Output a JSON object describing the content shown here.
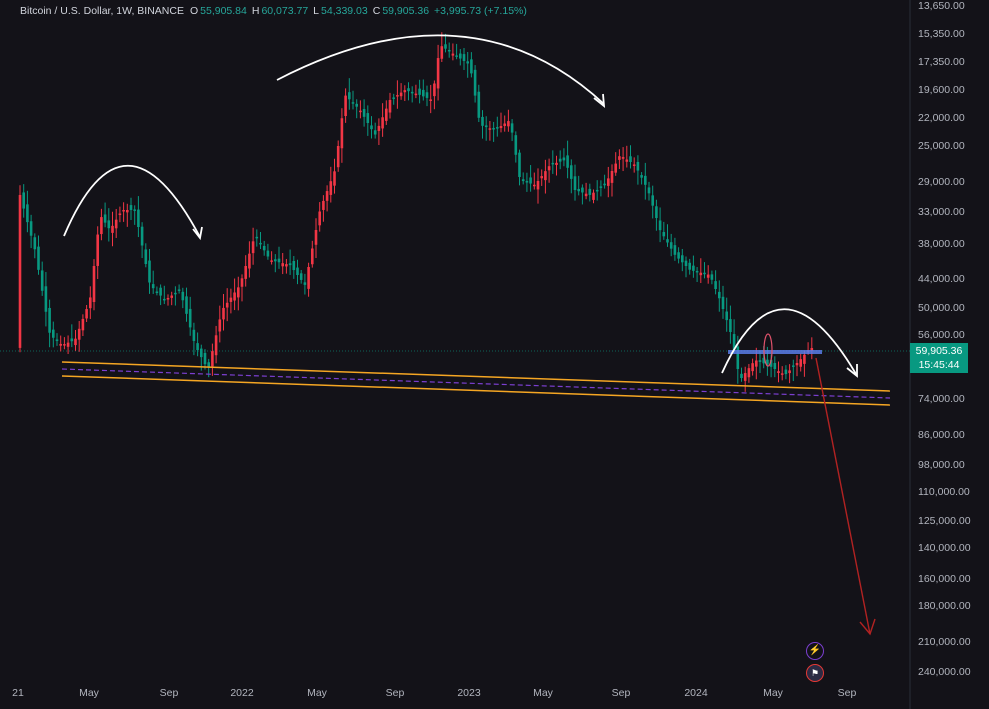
{
  "legend": {
    "title": "Bitcoin / U.S. Dollar, 1W, BINANCE",
    "open_label": "O",
    "open": "55,905.84",
    "high_label": "H",
    "high": "60,073.77",
    "low_label": "L",
    "low": "54,339.03",
    "close_label": "C",
    "close": "59,905.36",
    "change": "+3,995.73 (+7.15%)"
  },
  "price_tag": {
    "price": "59,905.36",
    "countdown": "15:45:44"
  },
  "colors": {
    "background": "#131218",
    "up": "#f23645",
    "down": "#089981",
    "support": "#f5a623",
    "resistance_box": "#5b7de8",
    "projection": "#b22222"
  },
  "chart_data": {
    "type": "candlestick",
    "price_scale": "inverted-log",
    "y_ticks": [
      "13,650.00",
      "15,350.00",
      "17,350.00",
      "19,600.00",
      "22,000.00",
      "25,000.00",
      "29,000.00",
      "33,000.00",
      "38,000.00",
      "44,000.00",
      "50,000.00",
      "56,000.00",
      "74,000.00",
      "86,000.00",
      "98,000.00",
      "110,000.00",
      "125,000.00",
      "140,000.00",
      "160,000.00",
      "180,000.00",
      "210,000.00",
      "240,000.00"
    ],
    "x_ticks": [
      "21",
      "May",
      "Sep",
      "2022",
      "May",
      "Sep",
      "2023",
      "May",
      "Sep",
      "2024",
      "May",
      "Sep"
    ],
    "annotations": [
      "arc-top-2021",
      "arc-top-2022",
      "arc-top-2024",
      "support-channel",
      "resistance-zone",
      "projection-arrow"
    ]
  },
  "icons": [
    "lightning-icon",
    "flag-us-icon"
  ]
}
